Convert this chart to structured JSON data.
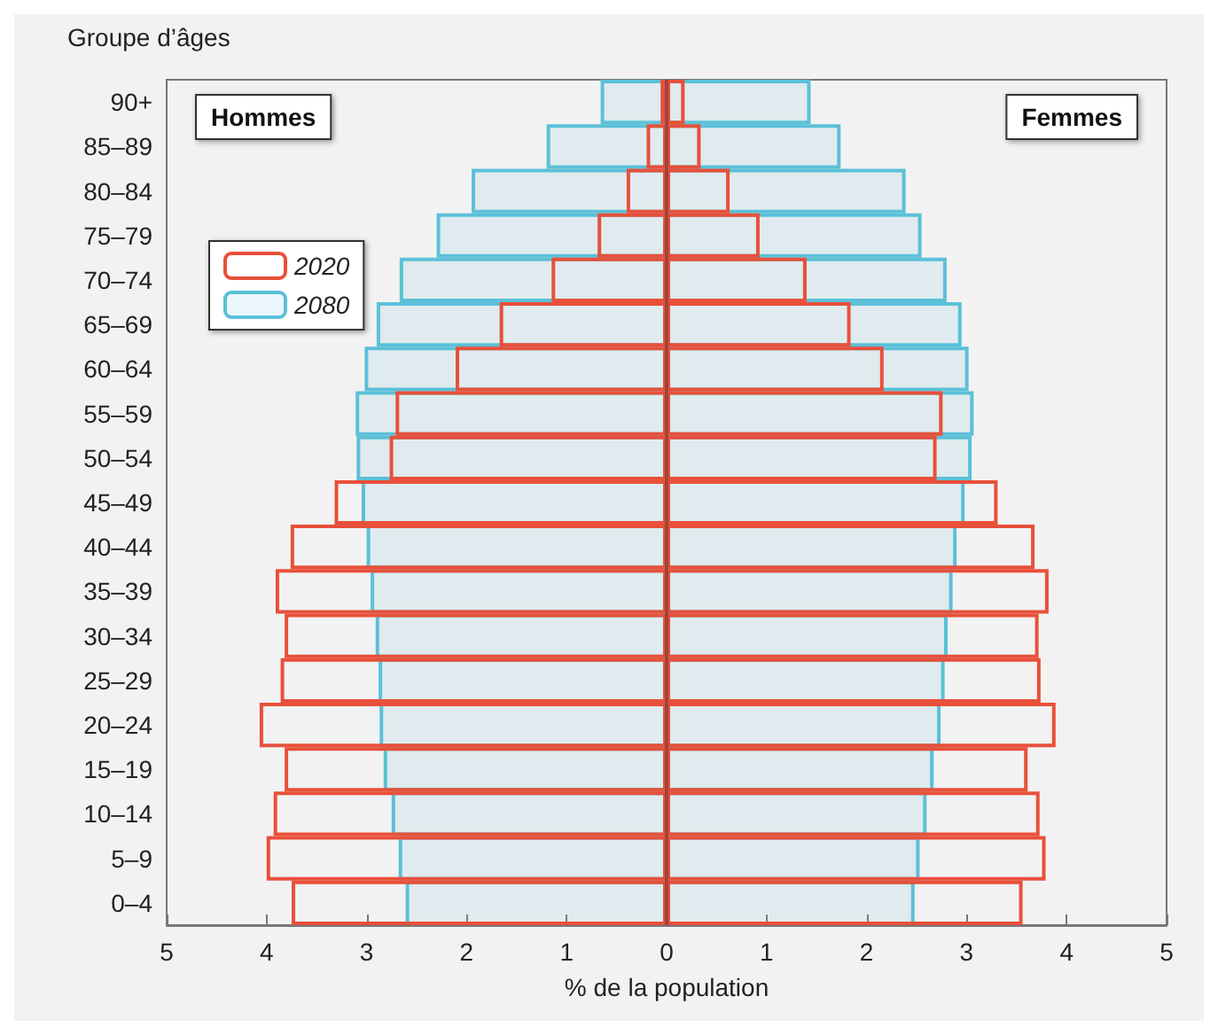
{
  "chart_data": {
    "type": "bar",
    "orientation": "horizontal",
    "xlabel": "% de la population",
    "ylabel": "Groupe d’âges",
    "categories": [
      "90+",
      "85–89",
      "80–84",
      "75–79",
      "70–74",
      "65–69",
      "60–64",
      "55–59",
      "50–54",
      "45–49",
      "40–44",
      "35–39",
      "30–34",
      "25–29",
      "20–24",
      "15–19",
      "10–14",
      "5–9",
      "0–4"
    ],
    "series": [
      {
        "name": "2020",
        "color": "#e8503a",
        "values": [
          -0.06,
          -0.2,
          -0.4,
          -0.69,
          -1.15,
          -1.67,
          -2.11,
          -2.71,
          -2.77,
          -3.32,
          -3.76,
          -3.91,
          -3.82,
          -3.86,
          -4.07,
          -3.82,
          -3.93,
          -4.0,
          -3.75
        ]
      },
      {
        "color": "#e8503a",
        "values": [
          0.18,
          0.34,
          0.63,
          0.93,
          1.4,
          1.84,
          2.17,
          2.76,
          2.7,
          3.31,
          3.68,
          3.82,
          3.72,
          3.74,
          3.89,
          3.61,
          3.73,
          3.79,
          3.56
        ]
      },
      {
        "name": "2080",
        "color": "#5bc0d8",
        "values": [
          -0.66,
          -1.2,
          -1.95,
          -2.3,
          -2.67,
          -2.9,
          -3.02,
          -3.11,
          -3.1,
          -3.05,
          -3.0,
          -2.96,
          -2.91,
          -2.88,
          -2.87,
          -2.83,
          -2.75,
          -2.68,
          -2.61
        ]
      },
      {
        "color": "#5bc0d8",
        "values": [
          1.44,
          1.74,
          2.39,
          2.55,
          2.8,
          2.95,
          3.02,
          3.07,
          3.05,
          2.98,
          2.9,
          2.86,
          2.81,
          2.78,
          2.74,
          2.67,
          2.6,
          2.53,
          2.48
        ]
      }
    ],
    "xlim": [
      -5,
      5
    ],
    "xticks": [
      {
        "value": -5,
        "label": "5"
      },
      {
        "value": -4,
        "label": "4"
      },
      {
        "value": -3,
        "label": "3"
      },
      {
        "value": -2,
        "label": "2"
      },
      {
        "value": -1,
        "label": "1"
      },
      0,
      1,
      2,
      3,
      4,
      5
    ],
    "ref_lines": [
      {
        "axis": "x",
        "value": 0,
        "color": "#a0443a"
      }
    ],
    "annotations": [
      "Hommes",
      "Femmes"
    ],
    "legend": "top left",
    "grid": false
  }
}
